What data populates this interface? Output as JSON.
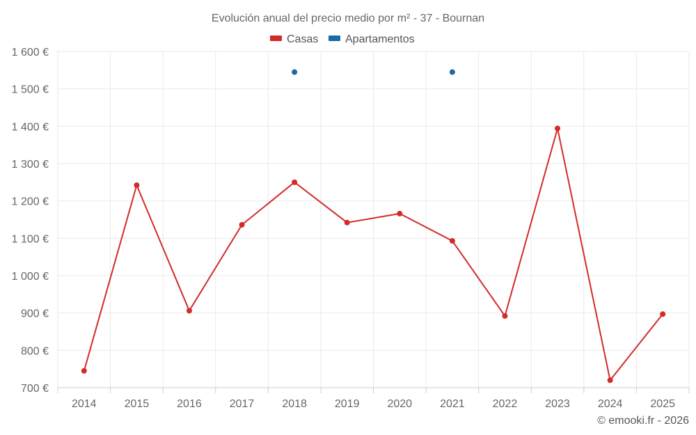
{
  "chart_data": {
    "type": "line",
    "title": "Evolución anual del precio medio por m² - 37 - Bournan",
    "categories": [
      "2014",
      "2015",
      "2016",
      "2017",
      "2018",
      "2019",
      "2020",
      "2021",
      "2022",
      "2023",
      "2024",
      "2025"
    ],
    "series": [
      {
        "name": "Casas",
        "color": "#d42a2a",
        "values": [
          745,
          1242,
          906,
          1136,
          1250,
          1142,
          1166,
          1093,
          892,
          1394,
          720,
          897
        ]
      },
      {
        "name": "Apartamentos",
        "color": "#1a6aa6",
        "values": [
          null,
          null,
          null,
          null,
          1545,
          null,
          null,
          1545,
          null,
          null,
          null,
          null
        ]
      }
    ],
    "ylim": [
      700,
      1600
    ],
    "yticks": [
      700,
      800,
      900,
      1000,
      1100,
      1200,
      1300,
      1400,
      1500,
      1600
    ],
    "ytick_labels": [
      "700 €",
      "800 €",
      "900 €",
      "1 000 €",
      "1 100 €",
      "1 200 €",
      "1 300 €",
      "1 400 €",
      "1 500 €",
      "1 600 €"
    ],
    "grid": true,
    "legend": "top-center",
    "credit": "© emooki.fr - 2026"
  }
}
